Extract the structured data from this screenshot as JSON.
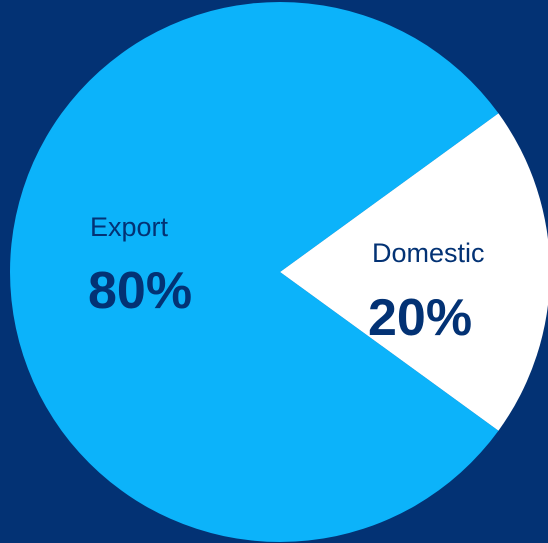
{
  "colors": {
    "background": "#033274",
    "export_slice": "#0CB3FA",
    "domestic_slice": "#FFFFFF",
    "label_text": "#033274"
  },
  "chart_data": {
    "type": "pie",
    "title": "",
    "slices": [
      {
        "label": "Export",
        "value": 80,
        "display": "80%",
        "color": "#0CB3FA"
      },
      {
        "label": "Domestic",
        "value": 20,
        "display": "20%",
        "color": "#FFFFFF"
      }
    ]
  },
  "labels": {
    "export_name": "Export",
    "export_pct": "80%",
    "domestic_name": "Domestic",
    "domestic_pct": "20%"
  }
}
